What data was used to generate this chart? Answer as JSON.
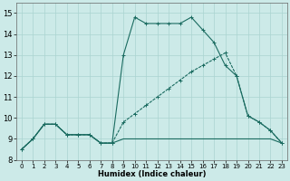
{
  "xlabel": "Humidex (Indice chaleur)",
  "xlim": [
    -0.5,
    23.5
  ],
  "ylim": [
    8.0,
    15.5
  ],
  "yticks": [
    8,
    9,
    10,
    11,
    12,
    13,
    14,
    15
  ],
  "xticks": [
    0,
    1,
    2,
    3,
    4,
    5,
    6,
    7,
    8,
    9,
    10,
    11,
    12,
    13,
    14,
    15,
    16,
    17,
    18,
    19,
    20,
    21,
    22,
    23
  ],
  "bg_color": "#cceae8",
  "grid_color": "#aad4d0",
  "line_color": "#1a6b60",
  "line1_x": [
    0,
    1,
    2,
    3,
    4,
    5,
    6,
    7,
    8,
    9,
    10,
    11,
    12,
    13,
    14,
    15,
    16,
    17,
    18,
    19,
    20,
    21,
    22,
    23
  ],
  "line1_y": [
    8.5,
    9.0,
    9.7,
    9.7,
    9.2,
    9.2,
    9.2,
    8.8,
    8.8,
    13.0,
    14.8,
    14.5,
    14.5,
    14.5,
    14.5,
    14.8,
    14.2,
    13.6,
    12.5,
    12.0,
    10.1,
    9.8,
    9.4,
    8.8
  ],
  "line2_x": [
    0,
    1,
    2,
    3,
    4,
    5,
    6,
    7,
    8,
    9,
    10,
    11,
    12,
    13,
    14,
    15,
    16,
    17,
    18,
    19,
    20,
    21,
    22,
    23
  ],
  "line2_y": [
    8.5,
    9.0,
    9.7,
    9.7,
    9.2,
    9.2,
    9.2,
    8.8,
    8.8,
    9.8,
    10.2,
    10.6,
    11.0,
    11.4,
    11.8,
    12.2,
    12.5,
    12.8,
    13.1,
    12.0,
    10.1,
    9.8,
    9.4,
    8.8
  ],
  "line3_x": [
    0,
    1,
    2,
    3,
    4,
    5,
    6,
    7,
    8,
    9,
    10,
    11,
    12,
    13,
    14,
    15,
    16,
    17,
    18,
    19,
    20,
    21,
    22,
    23
  ],
  "line3_y": [
    8.5,
    9.0,
    9.7,
    9.7,
    9.2,
    9.2,
    9.2,
    8.8,
    8.8,
    9.0,
    9.0,
    9.0,
    9.0,
    9.0,
    9.0,
    9.0,
    9.0,
    9.0,
    9.0,
    9.0,
    9.0,
    9.0,
    9.0,
    8.8
  ],
  "markersize": 3,
  "linewidth": 0.8
}
